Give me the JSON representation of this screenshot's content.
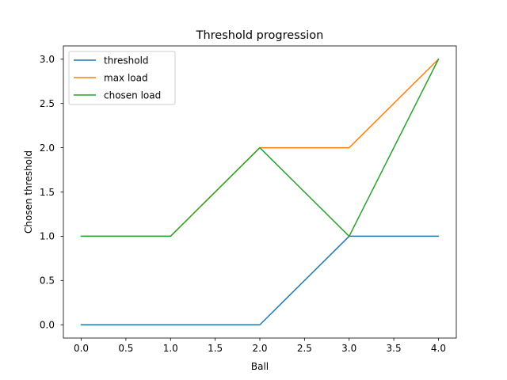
{
  "chart_data": {
    "type": "line",
    "title": "Threshold progression",
    "xlabel": "Ball",
    "ylabel": "Chosen threshold",
    "x": [
      0,
      1,
      2,
      3,
      4
    ],
    "xlim": [
      -0.2,
      4.2
    ],
    "ylim": [
      -0.15,
      3.15
    ],
    "xticks": [
      0.0,
      0.5,
      1.0,
      1.5,
      2.0,
      2.5,
      3.0,
      3.5,
      4.0
    ],
    "xtick_labels": [
      "0.0",
      "0.5",
      "1.0",
      "1.5",
      "2.0",
      "2.5",
      "3.0",
      "3.5",
      "4.0"
    ],
    "yticks": [
      0.0,
      0.5,
      1.0,
      1.5,
      2.0,
      2.5,
      3.0
    ],
    "ytick_labels": [
      "0.0",
      "0.5",
      "1.0",
      "1.5",
      "2.0",
      "2.5",
      "3.0"
    ],
    "grid": false,
    "legend_position": "top-left",
    "series": [
      {
        "name": "threshold",
        "color": "#1f77b4",
        "values": [
          0,
          0,
          0,
          1,
          1
        ]
      },
      {
        "name": "max load",
        "color": "#ff7f0e",
        "values": [
          1,
          1,
          2,
          2,
          3
        ]
      },
      {
        "name": "chosen load",
        "color": "#2ca02c",
        "values": [
          1,
          1,
          2,
          1,
          3
        ]
      }
    ]
  }
}
